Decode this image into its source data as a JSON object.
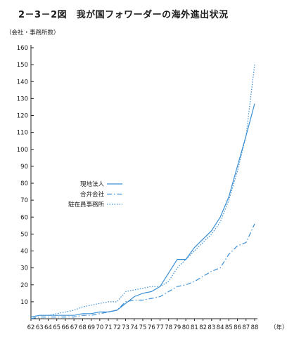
{
  "title": "2－3－2図　我が国フォワーダーの海外進出状況",
  "chart_data": {
    "type": "line",
    "ylabel": "（会社・事務所数）",
    "xlabel": "（年）",
    "ylim": [
      0,
      160
    ],
    "yticks": [
      10,
      20,
      30,
      40,
      50,
      60,
      70,
      80,
      90,
      100,
      110,
      120,
      130,
      140,
      150,
      160
    ],
    "categories": [
      "62",
      "63",
      "64",
      "65",
      "66",
      "67",
      "68",
      "69",
      "70",
      "71",
      "72",
      "73",
      "74",
      "75",
      "76",
      "77",
      "78",
      "79",
      "80",
      "81",
      "82",
      "83",
      "84",
      "85",
      "86",
      "87",
      "88"
    ],
    "series": [
      {
        "name": "現地法人",
        "style": "solid",
        "values": [
          1,
          2,
          2,
          2,
          2,
          2,
          3,
          3,
          4,
          4,
          5,
          9,
          13,
          15,
          16,
          19,
          27,
          35,
          35,
          42,
          47,
          52,
          60,
          72,
          90,
          108,
          127
        ]
      },
      {
        "name": "合弁会社",
        "style": "dashdot",
        "values": [
          0,
          1,
          1,
          1,
          1,
          1,
          2,
          2,
          3,
          4,
          5,
          10,
          11,
          11,
          12,
          13,
          16,
          19,
          20,
          22,
          25,
          28,
          30,
          38,
          43,
          45,
          56
        ]
      },
      {
        "name": "駐在員事務所",
        "style": "dotted",
        "values": [
          1,
          2,
          2,
          3,
          4,
          5,
          7,
          8,
          9,
          10,
          10,
          16,
          17,
          18,
          19,
          19,
          22,
          30,
          35,
          40,
          45,
          50,
          57,
          70,
          87,
          108,
          150
        ]
      }
    ],
    "legend_position": "center-left"
  }
}
